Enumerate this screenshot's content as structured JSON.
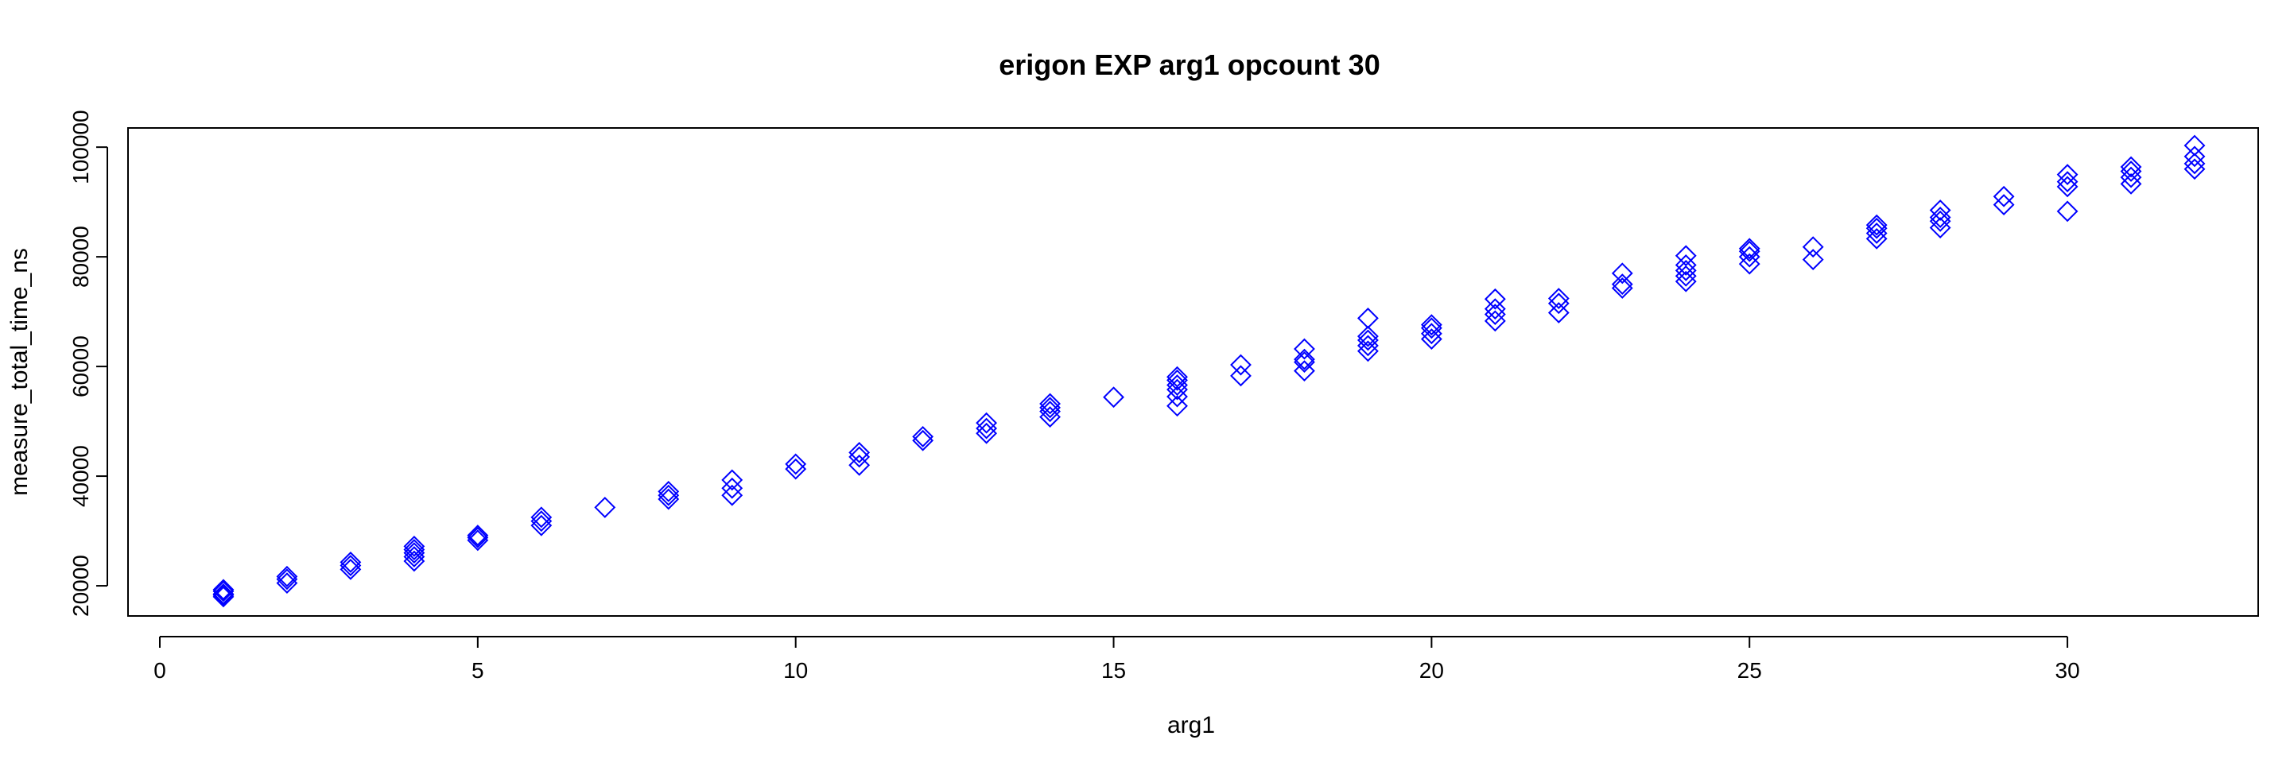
{
  "chart_data": {
    "type": "scatter",
    "title": "erigon EXP arg1 opcount 30",
    "xlabel": "arg1",
    "ylabel": "measure_total_time_ns",
    "xlim": [
      -0.5,
      33.0
    ],
    "ylim": [
      14500,
      103500
    ],
    "xticks": [
      0,
      5,
      10,
      15,
      20,
      25,
      30
    ],
    "yticks": [
      20000,
      40000,
      60000,
      80000,
      100000
    ],
    "marker": "open-diamond",
    "color": "#0000ff",
    "grid": false,
    "legend": "none",
    "points": [
      [
        1,
        18000
      ],
      [
        1,
        18500
      ],
      [
        1,
        19000
      ],
      [
        1,
        19300
      ],
      [
        1,
        18300
      ],
      [
        2,
        20500
      ],
      [
        2,
        21200
      ],
      [
        2,
        21700
      ],
      [
        3,
        23000
      ],
      [
        3,
        23700
      ],
      [
        3,
        24300
      ],
      [
        4,
        24500
      ],
      [
        4,
        25300
      ],
      [
        4,
        26000
      ],
      [
        4,
        26600
      ],
      [
        4,
        27200
      ],
      [
        5,
        28300
      ],
      [
        5,
        28800
      ],
      [
        5,
        29200
      ],
      [
        6,
        31000
      ],
      [
        6,
        31800
      ],
      [
        6,
        32500
      ],
      [
        7,
        34300
      ],
      [
        8,
        35800
      ],
      [
        8,
        36500
      ],
      [
        8,
        37200
      ],
      [
        9,
        36500
      ],
      [
        9,
        37800
      ],
      [
        9,
        39300
      ],
      [
        10,
        41300
      ],
      [
        10,
        42200
      ],
      [
        11,
        42000
      ],
      [
        11,
        43500
      ],
      [
        11,
        44300
      ],
      [
        12,
        46500
      ],
      [
        12,
        47200
      ],
      [
        13,
        47800
      ],
      [
        13,
        48700
      ],
      [
        13,
        49700
      ],
      [
        14,
        50800
      ],
      [
        14,
        51800
      ],
      [
        14,
        52500
      ],
      [
        14,
        53200
      ],
      [
        15,
        54400
      ],
      [
        16,
        52800
      ],
      [
        16,
        54500
      ],
      [
        16,
        55800
      ],
      [
        16,
        56600
      ],
      [
        16,
        57500
      ],
      [
        16,
        58100
      ],
      [
        17,
        58300
      ],
      [
        17,
        60300
      ],
      [
        18,
        59200
      ],
      [
        18,
        60800
      ],
      [
        18,
        61300
      ],
      [
        18,
        63200
      ],
      [
        19,
        62800
      ],
      [
        19,
        63800
      ],
      [
        19,
        64800
      ],
      [
        19,
        65500
      ],
      [
        19,
        68800
      ],
      [
        20,
        65000
      ],
      [
        20,
        66000
      ],
      [
        20,
        67000
      ],
      [
        20,
        67600
      ],
      [
        21,
        68300
      ],
      [
        21,
        69500
      ],
      [
        21,
        70500
      ],
      [
        21,
        72300
      ],
      [
        22,
        69800
      ],
      [
        22,
        71500
      ],
      [
        22,
        72400
      ],
      [
        23,
        74300
      ],
      [
        23,
        75000
      ],
      [
        23,
        77000
      ],
      [
        24,
        75500
      ],
      [
        24,
        76500
      ],
      [
        24,
        77500
      ],
      [
        24,
        78500
      ],
      [
        24,
        80200
      ],
      [
        25,
        78700
      ],
      [
        25,
        80000
      ],
      [
        25,
        81000
      ],
      [
        25,
        81500
      ],
      [
        26,
        79500
      ],
      [
        26,
        81800
      ],
      [
        27,
        83300
      ],
      [
        27,
        84300
      ],
      [
        27,
        85200
      ],
      [
        27,
        85800
      ],
      [
        28,
        85300
      ],
      [
        28,
        86500
      ],
      [
        28,
        87200
      ],
      [
        28,
        88500
      ],
      [
        29,
        89500
      ],
      [
        29,
        91000
      ],
      [
        30,
        88300
      ],
      [
        30,
        92800
      ],
      [
        30,
        93700
      ],
      [
        30,
        95000
      ],
      [
        31,
        93300
      ],
      [
        31,
        94500
      ],
      [
        31,
        95600
      ],
      [
        31,
        96400
      ],
      [
        32,
        96000
      ],
      [
        32,
        97000
      ],
      [
        32,
        98300
      ],
      [
        32,
        100300
      ]
    ]
  }
}
